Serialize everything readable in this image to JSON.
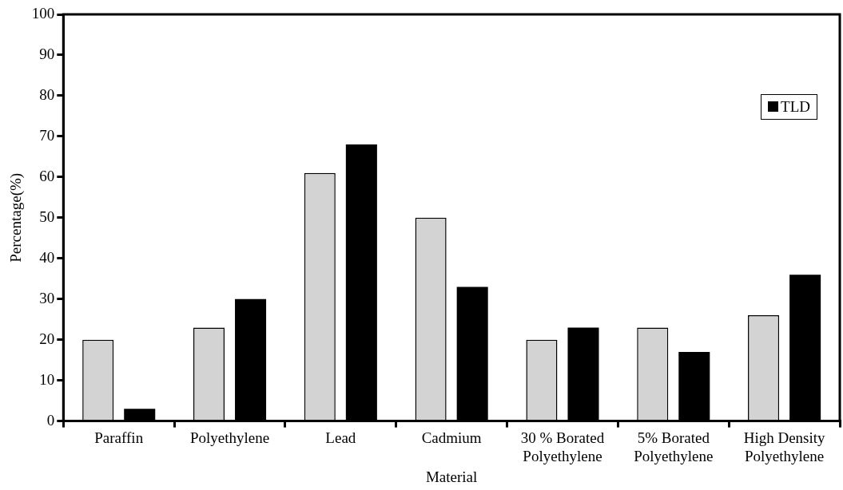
{
  "chart_data": {
    "type": "bar",
    "xlabel": "Material",
    "ylabel": "Percentage(%)",
    "categories": [
      "Paraffin",
      "Polyethylene",
      "Lead",
      "Cadmium",
      "30 % Borated Polyethylene",
      "5% Borated Polyethylene",
      "High Density Polyethylene"
    ],
    "series": [
      {
        "color": "#d3d3d3",
        "values": [
          20,
          23,
          61,
          50,
          20,
          23,
          26
        ]
      },
      {
        "name": "TLD",
        "color": "#000000",
        "values": [
          3,
          30,
          68,
          33,
          23,
          17,
          36
        ]
      }
    ],
    "ylim": [
      0,
      100
    ],
    "yticks": [
      0,
      10,
      20,
      30,
      40,
      50,
      60,
      70,
      80,
      90,
      100
    ],
    "grid": false,
    "legend": "top right"
  }
}
